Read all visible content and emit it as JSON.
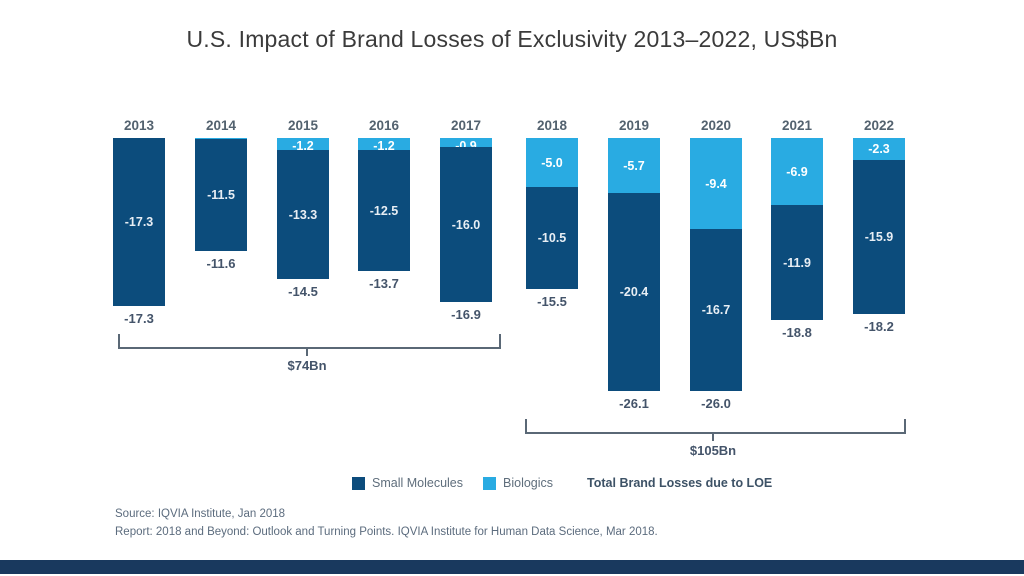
{
  "title": "U.S. Impact of Brand Losses of Exclusivity 2013–2022, US$Bn",
  "chart_data": {
    "type": "bar",
    "stacked": true,
    "orientation": "bars hang downward from common top baseline (losses)",
    "unit": "US$Bn",
    "categories": [
      "2013",
      "2014",
      "2015",
      "2016",
      "2017",
      "2018",
      "2019",
      "2020",
      "2021",
      "2022"
    ],
    "series": [
      {
        "name": "Small Molecules",
        "color": "#0c4c7c",
        "values": [
          -17.3,
          -11.5,
          -13.3,
          -12.5,
          -16.0,
          -10.5,
          -20.4,
          -16.7,
          -11.9,
          -15.9
        ]
      },
      {
        "name": "Biologics",
        "color": "#29abe2",
        "values": [
          null,
          -0.1,
          -1.2,
          -1.2,
          -0.9,
          -5.0,
          -5.7,
          -9.4,
          -6.9,
          -2.3
        ]
      }
    ],
    "totals": [
      -17.3,
      -11.6,
      -14.5,
      -13.7,
      -16.9,
      -15.5,
      -26.1,
      -26.0,
      -18.8,
      -18.2
    ],
    "groups": [
      {
        "label": "$74Bn",
        "start": "2013",
        "end": "2017"
      },
      {
        "label": "$105Bn",
        "start": "2018",
        "end": "2022"
      }
    ],
    "legend_position": "bottom",
    "grid": false
  },
  "legend": {
    "items": [
      {
        "label": "Small Molecules",
        "color": "#0c4c7c"
      },
      {
        "label": "Biologics",
        "color": "#29abe2"
      }
    ],
    "note": "Total Brand Losses due to LOE"
  },
  "footer": {
    "source": "Source: IQVIA Institute, Jan 2018",
    "report": "Report: 2018 and Beyond: Outlook and Turning Points. IQVIA Institute for Human Data Science, Mar 2018."
  },
  "colors": {
    "small_molecules": "#0c4c7c",
    "biologics": "#29abe2",
    "bar_label_on_dark": "#e8eef4",
    "bar_label_on_light": "#ffffff",
    "title_text": "#3b3b3b",
    "year_label": "#53626f",
    "total_label": "#44546a",
    "bracket": "#5a6876",
    "source_text": "#5c6c7e",
    "footer_bar": "#19395e"
  }
}
